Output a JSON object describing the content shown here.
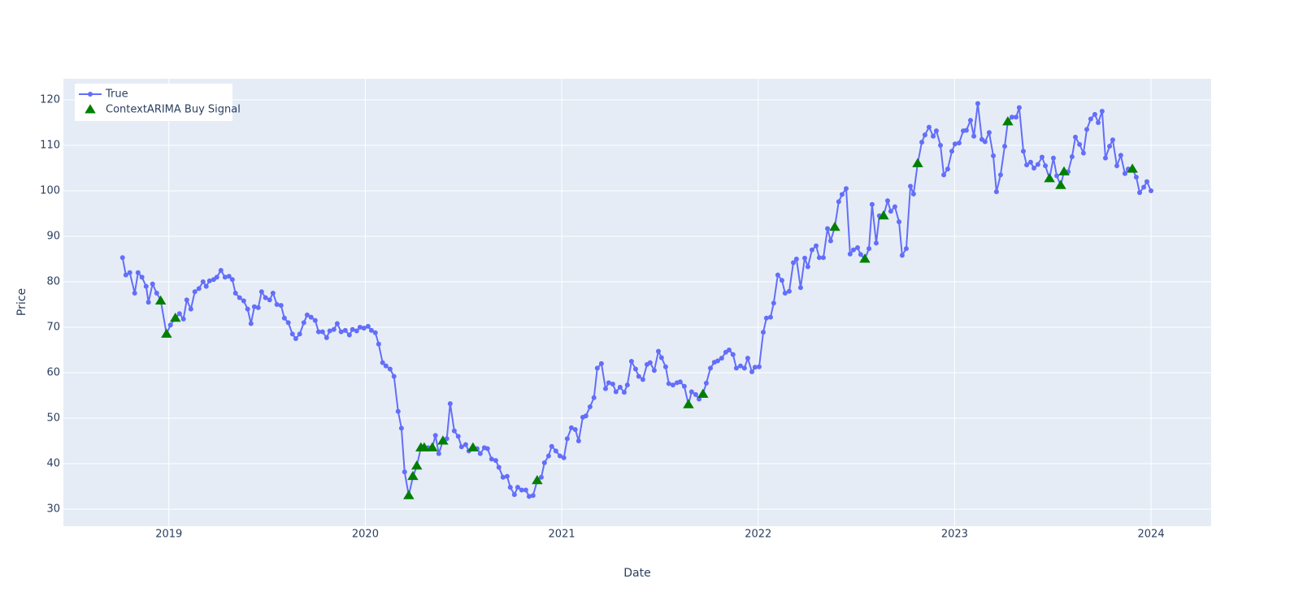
{
  "chart_data": {
    "type": "line",
    "x_label": "Date",
    "y_label": "Price",
    "xlim": [
      2018.463,
      2024.306
    ],
    "xticks": [
      2019,
      2020,
      2021,
      2022,
      2023,
      2024
    ],
    "ylim": [
      26.25,
      124.64
    ],
    "yticks": [
      30,
      40,
      50,
      60,
      70,
      80,
      90,
      100,
      110,
      120
    ],
    "grid": true,
    "legend": "top-left",
    "series": [
      {
        "name": "True",
        "color": "#636efa",
        "mode": "lines+markers",
        "x": [
          2018.764,
          2018.781,
          2018.801,
          2018.826,
          2018.843,
          2018.863,
          2018.884,
          2018.896,
          2018.917,
          2018.938,
          2018.958,
          2018.988,
          2019.008,
          2019.033,
          2019.054,
          2019.074,
          2019.091,
          2019.112,
          2019.132,
          2019.153,
          2019.174,
          2019.19,
          2019.207,
          2019.228,
          2019.244,
          2019.265,
          2019.286,
          2019.306,
          2019.323,
          2019.339,
          2019.36,
          2019.381,
          2019.401,
          2019.418,
          2019.435,
          2019.455,
          2019.472,
          2019.492,
          2019.513,
          2019.53,
          2019.55,
          2019.571,
          2019.588,
          2019.608,
          2019.629,
          2019.646,
          2019.666,
          2019.687,
          2019.704,
          2019.724,
          2019.745,
          2019.762,
          2019.782,
          2019.803,
          2019.819,
          2019.84,
          2019.857,
          2019.877,
          2019.898,
          2019.919,
          2019.935,
          2019.956,
          2019.973,
          2019.993,
          2020.014,
          2020.031,
          2020.051,
          2020.068,
          2020.088,
          2020.105,
          2020.126,
          2020.146,
          2020.167,
          2020.184,
          2020.2,
          2020.221,
          2020.242,
          2020.262,
          2020.283,
          2020.3,
          2020.32,
          2020.341,
          2020.357,
          2020.374,
          2020.395,
          2020.415,
          2020.432,
          2020.453,
          2020.473,
          2020.49,
          2020.511,
          2020.527,
          2020.548,
          2020.569,
          2020.585,
          2020.606,
          2020.622,
          2020.643,
          2020.664,
          2020.68,
          2020.701,
          2020.722,
          2020.738,
          2020.759,
          2020.776,
          2020.796,
          2020.817,
          2020.834,
          2020.854,
          2020.875,
          2020.896,
          2020.912,
          2020.933,
          2020.949,
          2020.97,
          2020.991,
          2021.011,
          2021.028,
          2021.049,
          2021.069,
          2021.086,
          2021.107,
          2021.123,
          2021.144,
          2021.164,
          2021.181,
          2021.202,
          2021.223,
          2021.239,
          2021.26,
          2021.276,
          2021.297,
          2021.318,
          2021.334,
          2021.355,
          2021.376,
          2021.392,
          2021.413,
          2021.434,
          2021.45,
          2021.471,
          2021.492,
          2021.508,
          2021.529,
          2021.545,
          2021.566,
          2021.587,
          2021.603,
          2021.624,
          2021.645,
          2021.661,
          2021.682,
          2021.699,
          2021.719,
          2021.736,
          2021.757,
          2021.777,
          2021.794,
          2021.814,
          2021.835,
          2021.852,
          2021.872,
          2021.889,
          2021.91,
          2021.93,
          2021.947,
          2021.968,
          2021.984,
          2022.005,
          2022.026,
          2022.042,
          2022.063,
          2022.079,
          2022.1,
          2022.121,
          2022.137,
          2022.158,
          2022.179,
          2022.195,
          2022.216,
          2022.237,
          2022.253,
          2022.274,
          2022.295,
          2022.311,
          2022.332,
          2022.353,
          2022.369,
          2022.39,
          2022.41,
          2022.427,
          2022.448,
          2022.468,
          2022.485,
          2022.506,
          2022.522,
          2022.543,
          2022.564,
          2022.58,
          2022.601,
          2022.617,
          2022.638,
          2022.659,
          2022.675,
          2022.696,
          2022.717,
          2022.733,
          2022.754,
          2022.775,
          2022.791,
          2022.812,
          2022.833,
          2022.849,
          2022.87,
          2022.891,
          2022.907,
          2022.928,
          2022.945,
          2022.965,
          2022.986,
          2023.002,
          2023.023,
          2023.044,
          2023.06,
          2023.081,
          2023.098,
          2023.118,
          2023.139,
          2023.155,
          2023.176,
          2023.197,
          2023.213,
          2023.234,
          2023.255,
          2023.271,
          2023.292,
          2023.313,
          2023.329,
          2023.35,
          2023.367,
          2023.387,
          2023.404,
          2023.424,
          2023.445,
          2023.462,
          2023.483,
          2023.503,
          2023.52,
          2023.54,
          2023.557,
          2023.578,
          2023.598,
          2023.615,
          2023.636,
          2023.656,
          2023.673,
          2023.693,
          2023.714,
          2023.731,
          2023.751,
          2023.768,
          2023.789,
          2023.805,
          2023.826,
          2023.846,
          2023.867,
          2023.884,
          2023.905,
          2023.925,
          2023.942,
          2023.963,
          2023.979,
          2024.0
        ],
        "values": [
          85.3,
          81.5,
          82,
          77.5,
          82,
          81,
          79,
          75.5,
          79.5,
          77.5,
          76,
          68.5,
          70.5,
          72,
          73,
          71.8,
          76,
          74,
          77.8,
          78.5,
          80,
          79,
          80.2,
          80.5,
          81,
          82.5,
          81,
          81.2,
          80.5,
          77.5,
          76.5,
          75.8,
          74,
          70.8,
          74.5,
          74.3,
          77.8,
          76.5,
          76,
          77.5,
          75,
          74.8,
          72,
          71,
          68.5,
          67.5,
          68.5,
          71,
          72.7,
          72.2,
          71.5,
          69,
          69,
          67.7,
          69.2,
          69.5,
          70.8,
          69,
          69.3,
          68.3,
          69.5,
          69.2,
          70,
          69.8,
          70.2,
          69.3,
          68.8,
          66.3,
          62.2,
          61.5,
          60.8,
          59.2,
          51.5,
          47.8,
          38.2,
          33,
          37,
          39.5,
          43.5,
          43.5,
          43.5,
          43.5,
          46.2,
          42.2,
          45,
          45.5,
          53.2,
          47.2,
          46,
          43.7,
          44.2,
          42.8,
          43.5,
          43.3,
          42.2,
          43.5,
          43.3,
          41,
          40.7,
          39.2,
          37,
          37.2,
          34.8,
          33.2,
          34.8,
          34.2,
          34.2,
          32.8,
          33,
          36.2,
          37,
          40.2,
          41.7,
          43.8,
          42.8,
          41.7,
          41.3,
          45.5,
          47.9,
          47.5,
          45,
          50.2,
          50.5,
          52.5,
          54.5,
          61,
          62,
          56.5,
          57.8,
          57.5,
          55.8,
          56.8,
          55.7,
          57.3,
          62.5,
          60.8,
          59.2,
          58.5,
          61.8,
          62.2,
          60.5,
          64.7,
          63.3,
          61.3,
          57.6,
          57.3,
          57.8,
          58,
          57,
          53,
          55.8,
          55.2,
          54.2,
          55.3,
          57.7,
          61,
          62.3,
          62.6,
          63.2,
          64.5,
          65,
          64,
          61,
          61.5,
          61,
          63.2,
          60.2,
          61.2,
          61.3,
          68.9,
          72,
          72.2,
          75.3,
          81.5,
          80.3,
          77.5,
          77.9,
          84.2,
          85,
          78.7,
          85.2,
          83.3,
          87,
          87.9,
          85.3,
          85.3,
          91.7,
          89,
          92,
          97.6,
          99.2,
          100.5,
          86.1,
          87,
          87.5,
          86,
          85,
          87.3,
          97,
          88.5,
          94.5,
          94.5,
          97.8,
          95.5,
          96.5,
          93.2,
          85.8,
          87.3,
          101,
          99.3,
          106,
          110.7,
          112.3,
          114,
          112,
          113.2,
          110,
          103.5,
          104.8,
          108.7,
          110.3,
          110.5,
          113.2,
          113.3,
          115.5,
          112,
          119.2,
          111.3,
          110.8,
          112.8,
          107.7,
          99.8,
          103.5,
          109.8,
          115.2,
          116.2,
          116.2,
          118.3,
          108.7,
          105.7,
          106.3,
          105,
          105.8,
          107.4,
          105.5,
          102.7,
          107.2,
          103.3,
          101.2,
          104.2,
          104.2,
          107.5,
          111.8,
          110.2,
          108.3,
          113.5,
          115.8,
          116.8,
          115,
          117.5,
          107.2,
          109.8,
          111.2,
          105.5,
          107.8,
          103.8,
          104.8,
          104.8,
          103,
          99.6,
          100.8,
          102,
          100
        ]
      },
      {
        "name": "ContextARIMA Buy Signal",
        "color": "#008000",
        "mode": "markers",
        "marker": "triangle-up",
        "x": [
          2018.958,
          2018.988,
          2019.033,
          2020.221,
          2020.242,
          2020.262,
          2020.283,
          2020.3,
          2020.341,
          2020.395,
          2020.548,
          2020.875,
          2021.645,
          2021.719,
          2022.39,
          2022.543,
          2022.638,
          2022.812,
          2023.271,
          2023.483,
          2023.54,
          2023.557,
          2023.905
        ],
        "values": [
          75.8,
          68.5,
          72,
          33,
          37.2,
          39.5,
          43.5,
          43.5,
          43.5,
          45,
          43.5,
          36.3,
          53,
          55.3,
          92,
          85,
          94.5,
          106,
          115.2,
          102.7,
          101.2,
          104.2,
          104.8
        ]
      }
    ]
  }
}
